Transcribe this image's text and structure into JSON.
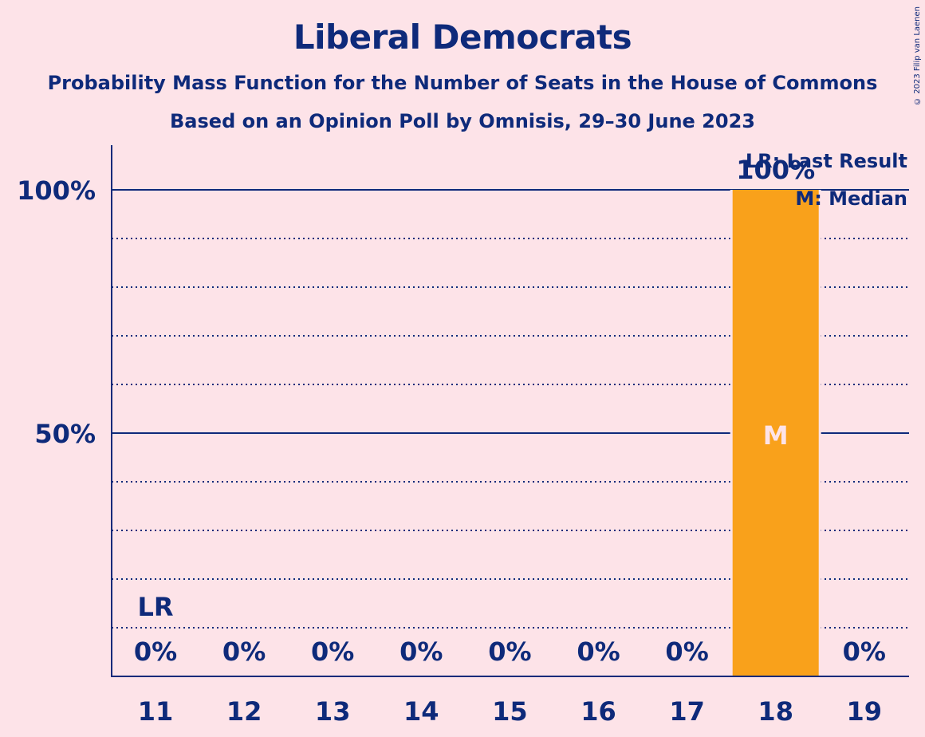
{
  "title": "Liberal Democrats",
  "subtitle1": "Probability Mass Function for the Number of Seats in the House of Commons",
  "subtitle2": "Based on an Opinion Poll by Omnisis, 29–30 June 2023",
  "copyright": "© 2023 Filip van Laenen",
  "legend": {
    "last_result": "LR: Last Result",
    "median": "M: Median"
  },
  "colors": {
    "background": "#fde3e8",
    "text": "#0e2a7a",
    "bar": "#f9a11b"
  },
  "chart_data": {
    "type": "bar",
    "title": "Liberal Democrats",
    "xlabel": "",
    "ylabel": "",
    "categories": [
      11,
      12,
      13,
      14,
      15,
      16,
      17,
      18,
      19
    ],
    "values": [
      0,
      0,
      0,
      0,
      0,
      0,
      0,
      100,
      0
    ],
    "value_labels": [
      "0%",
      "0%",
      "0%",
      "0%",
      "0%",
      "0%",
      "0%",
      "100%",
      "0%"
    ],
    "ylim": [
      0,
      100
    ],
    "y_ticks": [
      {
        "value": 50,
        "label": "50%"
      },
      {
        "value": 100,
        "label": "100%"
      }
    ],
    "minor_gridlines_every": 10,
    "last_result": {
      "seat": 11,
      "label": "LR"
    },
    "median": {
      "seat": 18,
      "label": "M"
    },
    "legend_position": "top-right"
  }
}
